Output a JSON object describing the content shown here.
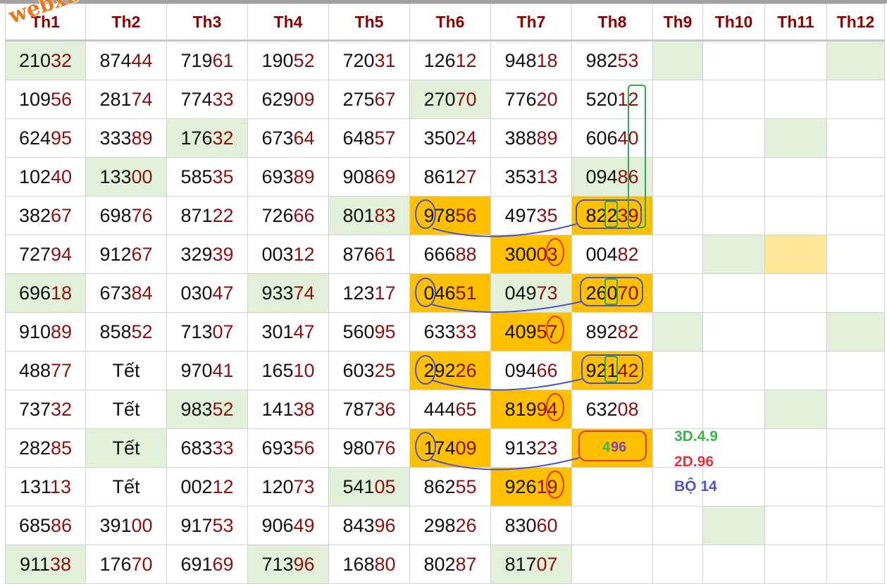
{
  "watermark": "webxoso.net",
  "headers": [
    "Th1",
    "Th2",
    "Th3",
    "Th4",
    "Th5",
    "Th6",
    "Th7",
    "Th8",
    "Th9",
    "Th10",
    "Th11",
    "Th12"
  ],
  "rows": [
    [
      {
        "v": "21032",
        "bg": "g"
      },
      {
        "v": "87444"
      },
      {
        "v": "71961"
      },
      {
        "v": "19052"
      },
      {
        "v": "72031"
      },
      {
        "v": "12612"
      },
      {
        "v": "94818"
      },
      {
        "v": "98253"
      },
      {
        "v": "",
        "bg": "g"
      },
      {
        "v": ""
      },
      {
        "v": ""
      },
      {
        "v": "",
        "bg": "g"
      }
    ],
    [
      {
        "v": "10956"
      },
      {
        "v": "28174"
      },
      {
        "v": "77433"
      },
      {
        "v": "62909"
      },
      {
        "v": "27567"
      },
      {
        "v": "27070",
        "bg": "g"
      },
      {
        "v": "77620"
      },
      {
        "v": "52012"
      },
      {
        "v": ""
      },
      {
        "v": ""
      },
      {
        "v": ""
      },
      {
        "v": ""
      }
    ],
    [
      {
        "v": "62495"
      },
      {
        "v": "33389"
      },
      {
        "v": "17632",
        "bg": "g"
      },
      {
        "v": "67364"
      },
      {
        "v": "64857"
      },
      {
        "v": "35024"
      },
      {
        "v": "38889"
      },
      {
        "v": "60640"
      },
      {
        "v": ""
      },
      {
        "v": ""
      },
      {
        "v": "",
        "bg": "g"
      },
      {
        "v": ""
      }
    ],
    [
      {
        "v": "10240"
      },
      {
        "v": "13300",
        "bg": "g"
      },
      {
        "v": "58535"
      },
      {
        "v": "69389"
      },
      {
        "v": "90869"
      },
      {
        "v": "86127"
      },
      {
        "v": "35313"
      },
      {
        "v": "09486",
        "bg": "g"
      },
      {
        "v": ""
      },
      {
        "v": ""
      },
      {
        "v": ""
      },
      {
        "v": ""
      }
    ],
    [
      {
        "v": "38267"
      },
      {
        "v": "69876"
      },
      {
        "v": "87122"
      },
      {
        "v": "72666"
      },
      {
        "v": "80183",
        "bg": "g"
      },
      {
        "v": "97856",
        "bg": "o"
      },
      {
        "v": "49735"
      },
      {
        "v": "82239",
        "bg": "o"
      },
      {
        "v": ""
      },
      {
        "v": ""
      },
      {
        "v": ""
      },
      {
        "v": ""
      }
    ],
    [
      {
        "v": "72794"
      },
      {
        "v": "91267"
      },
      {
        "v": "32939"
      },
      {
        "v": "00312"
      },
      {
        "v": "87661"
      },
      {
        "v": "66688"
      },
      {
        "v": "30003",
        "bg": "o"
      },
      {
        "v": "00482"
      },
      {
        "v": ""
      },
      {
        "v": "",
        "bg": "g"
      },
      {
        "v": "",
        "bg": "y"
      },
      {
        "v": ""
      }
    ],
    [
      {
        "v": "69618",
        "bg": "g"
      },
      {
        "v": "67384"
      },
      {
        "v": "03047"
      },
      {
        "v": "93374",
        "bg": "g"
      },
      {
        "v": "12317"
      },
      {
        "v": "04651",
        "bg": "o"
      },
      {
        "v": "04973",
        "bg": "g"
      },
      {
        "v": "26070",
        "bg": "o"
      },
      {
        "v": ""
      },
      {
        "v": ""
      },
      {
        "v": ""
      },
      {
        "v": ""
      }
    ],
    [
      {
        "v": "91089"
      },
      {
        "v": "85852"
      },
      {
        "v": "71307"
      },
      {
        "v": "30147"
      },
      {
        "v": "56095"
      },
      {
        "v": "63333"
      },
      {
        "v": "40957",
        "bg": "o"
      },
      {
        "v": "89282"
      },
      {
        "v": "",
        "bg": "g"
      },
      {
        "v": ""
      },
      {
        "v": ""
      },
      {
        "v": "",
        "bg": "g"
      }
    ],
    [
      {
        "v": "48877"
      },
      {
        "v": "Tết"
      },
      {
        "v": "97041"
      },
      {
        "v": "16510"
      },
      {
        "v": "60325"
      },
      {
        "v": "29226",
        "bg": "o"
      },
      {
        "v": "09466"
      },
      {
        "v": "92142",
        "bg": "o"
      },
      {
        "v": ""
      },
      {
        "v": ""
      },
      {
        "v": ""
      },
      {
        "v": ""
      }
    ],
    [
      {
        "v": "73732"
      },
      {
        "v": "Tết"
      },
      {
        "v": "98352",
        "bg": "g"
      },
      {
        "v": "14138"
      },
      {
        "v": "78736"
      },
      {
        "v": "44465"
      },
      {
        "v": "81994",
        "bg": "o"
      },
      {
        "v": "63208"
      },
      {
        "v": ""
      },
      {
        "v": ""
      },
      {
        "v": "",
        "bg": "g"
      },
      {
        "v": ""
      }
    ],
    [
      {
        "v": "28285"
      },
      {
        "v": "Tết",
        "bg": "g"
      },
      {
        "v": "68333"
      },
      {
        "v": "69356"
      },
      {
        "v": "98076"
      },
      {
        "v": "17409",
        "bg": "o"
      },
      {
        "v": "91323"
      },
      {
        "v": "",
        "bg": "o"
      },
      {
        "v": ""
      },
      {
        "v": ""
      },
      {
        "v": ""
      },
      {
        "v": ""
      }
    ],
    [
      {
        "v": "13113"
      },
      {
        "v": "Tết"
      },
      {
        "v": "00212"
      },
      {
        "v": "12073"
      },
      {
        "v": "54105",
        "bg": "g"
      },
      {
        "v": "86255"
      },
      {
        "v": "92619",
        "bg": "o"
      },
      {
        "v": ""
      },
      {
        "v": ""
      },
      {
        "v": ""
      },
      {
        "v": ""
      },
      {
        "v": ""
      }
    ],
    [
      {
        "v": "68586"
      },
      {
        "v": "39100"
      },
      {
        "v": "91753"
      },
      {
        "v": "90649"
      },
      {
        "v": "84396"
      },
      {
        "v": "29826"
      },
      {
        "v": "83060"
      },
      {
        "v": ""
      },
      {
        "v": ""
      },
      {
        "v": "",
        "bg": "g"
      },
      {
        "v": ""
      },
      {
        "v": ""
      }
    ],
    [
      {
        "v": "91138",
        "bg": "g"
      },
      {
        "v": "17670"
      },
      {
        "v": "69169"
      },
      {
        "v": "71396",
        "bg": "g"
      },
      {
        "v": "16880"
      },
      {
        "v": "80287"
      },
      {
        "v": "81707",
        "bg": "g"
      },
      {
        "v": ""
      },
      {
        "v": ""
      },
      {
        "v": ""
      },
      {
        "v": ""
      },
      {
        "v": ""
      }
    ]
  ],
  "prediction": {
    "digit1": "4",
    "digits2": "96"
  },
  "notes": {
    "line1": "3D.4.9",
    "line2": "2D.96",
    "line3": "BỘ 14"
  },
  "colors": {
    "green_note": "#3cb44b",
    "red_note": "#e8333c",
    "blue_note": "#4b55c8",
    "cell_green": "#e2f0d9",
    "cell_orange": "#ffc000",
    "cell_yellow": "#ffe699",
    "header_text": "#8b0000",
    "digit_tail": "#8b1010"
  }
}
